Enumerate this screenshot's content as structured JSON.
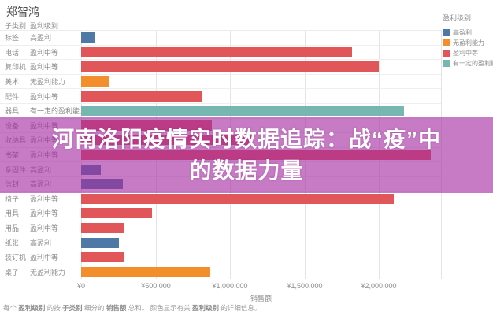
{
  "page": {
    "title": "郑智鸿"
  },
  "columns": {
    "sub_category": "子类别",
    "profit_level": "盈利级别"
  },
  "legend": {
    "title": "盈利级别",
    "items": [
      {
        "label": "高盈利",
        "color": "#4e79a7"
      },
      {
        "label": "无盈利能力",
        "color": "#f28e2b"
      },
      {
        "label": "盈利中等",
        "color": "#e15759"
      },
      {
        "label": "有一定的盈利能力",
        "color": "#76b7b2"
      }
    ]
  },
  "chart_data": {
    "type": "bar",
    "orientation": "horizontal",
    "title": "郑智鸿",
    "xlabel": "销售额",
    "legend_title": "盈利级别",
    "xlim": [
      0,
      2420000
    ],
    "x_tick_interval": 500000,
    "x_ticks": [
      0,
      500000,
      1000000,
      1500000,
      2000000
    ],
    "x_tick_labels": [
      "¥0",
      "¥500,000",
      "¥1,000,000",
      "¥1,500,000",
      "¥2,000,000"
    ],
    "grid": true,
    "color_map": {
      "高盈利": "#4e79a7",
      "无盈利能力": "#f28e2b",
      "盈利中等": "#e15759",
      "有一定的盈利能力": "#76b7b2"
    },
    "rows": [
      {
        "category": "标签",
        "level": "高盈利",
        "value": 90000
      },
      {
        "category": "电话",
        "level": "盈利中等",
        "value": 1820000
      },
      {
        "category": "复印机",
        "level": "盈利中等",
        "value": 2000000
      },
      {
        "category": "美术",
        "level": "无盈利能力",
        "value": 190000
      },
      {
        "category": "配件",
        "level": "盈利中等",
        "value": 810000
      },
      {
        "category": "器具",
        "level": "有一定的盈利能力",
        "value": 2170000
      },
      {
        "category": "设备",
        "level": "盈利中等",
        "value": 880000
      },
      {
        "category": "收纳具",
        "level": "盈利中等",
        "value": 1150000
      },
      {
        "category": "书架",
        "level": "盈利中等",
        "value": 2350000
      },
      {
        "category": "系固件",
        "level": "高盈利",
        "value": 130000
      },
      {
        "category": "信封",
        "level": "高盈利",
        "value": 280000
      },
      {
        "category": "椅子",
        "level": "盈利中等",
        "value": 2100000
      },
      {
        "category": "用具",
        "level": "盈利中等",
        "value": 475000
      },
      {
        "category": "用品",
        "level": "盈利中等",
        "value": 285000
      },
      {
        "category": "纸张",
        "level": "高盈利",
        "value": 255000
      },
      {
        "category": "装订机",
        "level": "盈利中等",
        "value": 290000
      },
      {
        "category": "桌子",
        "level": "无盈利能力",
        "value": 870000
      }
    ]
  },
  "axis": {
    "title": "销售额"
  },
  "banner": {
    "title_line1": "河南洛阳疫情实时数据追踪：战“疫”中",
    "title_line2": "的数据力量",
    "overlay_color": "#a32aa0",
    "overlay_opacity": 0.62,
    "text_color": "#ffffff"
  },
  "caption": {
    "segments": [
      {
        "text": "每个 ",
        "bold": false
      },
      {
        "text": "盈利级别",
        "bold": true
      },
      {
        "text": " 的按 ",
        "bold": false
      },
      {
        "text": "子类别",
        "bold": true
      },
      {
        "text": " 细分的 ",
        "bold": false
      },
      {
        "text": "销售额",
        "bold": true
      },
      {
        "text": " 总和。  颜色显示有关 ",
        "bold": false
      },
      {
        "text": "盈利级别",
        "bold": true
      },
      {
        "text": " 的详细信息。",
        "bold": false
      }
    ]
  }
}
